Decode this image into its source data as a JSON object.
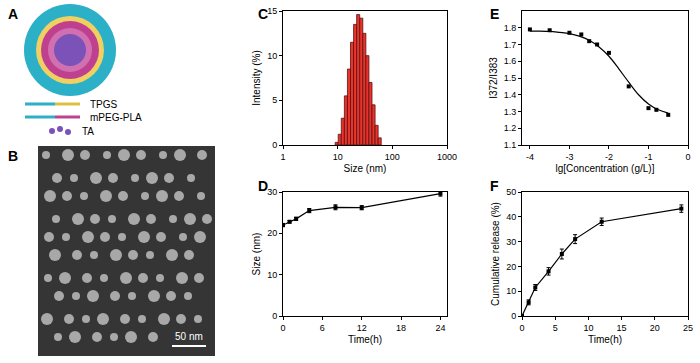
{
  "chart_data": [
    {
      "type": "diagram",
      "title": "A",
      "labels": [
        "TPGS",
        "mPEG-PLA",
        "TA"
      ]
    },
    {
      "type": "image",
      "title": "B",
      "annotations": [
        "50 nm"
      ]
    },
    {
      "type": "histogram",
      "title": "C",
      "x_label": "Size (nm)",
      "y_label": "Intensity (%)",
      "bins": [
        9.0,
        10.24,
        11.66,
        13.27,
        15.1,
        17.18,
        19.55,
        22.25,
        25.32,
        28.82,
        32.8,
        37.32,
        42.47,
        48.34,
        55.01,
        62.6
      ],
      "counts": [
        0.3,
        1.2,
        3.0,
        5.5,
        8.5,
        11.5,
        13.5,
        14.6,
        14.2,
        12.5,
        10.0,
        7.0,
        4.5,
        2.2,
        0.8
      ],
      "color": "#e8342b",
      "log": "x",
      "xlim": [
        1,
        1000
      ],
      "xticks": [
        1,
        10,
        100,
        1000
      ],
      "ylim": [
        0,
        15
      ],
      "yticks": [
        0,
        5,
        10,
        15
      ]
    },
    {
      "type": "line",
      "title": "D",
      "x_label": "Time(h)",
      "y_label": "Size (nm)",
      "x": [
        0,
        1,
        2,
        4,
        8,
        12,
        24
      ],
      "values": [
        22.0,
        22.8,
        23.5,
        25.5,
        26.3,
        26.2,
        29.6
      ],
      "errors": [
        0.4,
        0.3,
        0.4,
        0.5,
        0.6,
        0.5,
        0.6
      ],
      "color": "#000000",
      "marker": "square",
      "xlim": [
        0,
        25
      ],
      "xticks": [
        0,
        6,
        12,
        18,
        24
      ],
      "ylim": [
        0,
        30
      ],
      "yticks": [
        0,
        10,
        20,
        30
      ]
    },
    {
      "type": "scatter",
      "title": "E",
      "x_label": "lg[Concentration (g/L)]",
      "y_label": "I372/I383",
      "series": [
        {
          "type": "scatter",
          "color": "#000000",
          "marker": "square",
          "x": [
            -4,
            -3.5,
            -3,
            -2.7,
            -2.5,
            -2.3,
            -2,
            -1.5,
            -1,
            -0.8,
            -0.5
          ],
          "values": [
            1.79,
            1.785,
            1.77,
            1.76,
            1.72,
            1.7,
            1.65,
            1.45,
            1.32,
            1.31,
            1.28
          ]
        },
        {
          "type": "line",
          "color": "#000000",
          "line_style": "solid",
          "x": [
            -4,
            -3.75,
            -3.5,
            -3.25,
            -3,
            -2.75,
            -2.5,
            -2.25,
            -2,
            -1.75,
            -1.5,
            -1.25,
            -1,
            -0.75,
            -0.5
          ],
          "values": [
            1.78,
            1.78,
            1.778,
            1.772,
            1.765,
            1.75,
            1.725,
            1.685,
            1.63,
            1.555,
            1.475,
            1.4,
            1.345,
            1.31,
            1.29
          ]
        }
      ],
      "xlim": [
        -4.2,
        0
      ],
      "xticks": [
        -4,
        -3,
        -2,
        -1,
        0
      ],
      "ylim": [
        1.1,
        1.9
      ],
      "yticks": [
        1.1,
        1.2,
        1.3,
        1.4,
        1.5,
        1.6,
        1.7,
        1.8
      ]
    },
    {
      "type": "line",
      "title": "F",
      "x_label": "Time(h)",
      "y_label": "Cumulative release (%)",
      "x": [
        0,
        1,
        2,
        4,
        6,
        8,
        12,
        24
      ],
      "values": [
        0,
        5.5,
        11.5,
        18,
        25,
        31,
        38,
        43.3
      ],
      "errors": [
        0.3,
        1.0,
        1.2,
        1.5,
        2.0,
        1.8,
        1.5,
        1.5
      ],
      "color": "#000000",
      "marker": "square",
      "xlim": [
        0,
        25
      ],
      "xticks": [
        0,
        5,
        10,
        15,
        20,
        25
      ],
      "ylim": [
        0,
        50
      ],
      "yticks": [
        0,
        10,
        20,
        30,
        40,
        50
      ]
    }
  ]
}
